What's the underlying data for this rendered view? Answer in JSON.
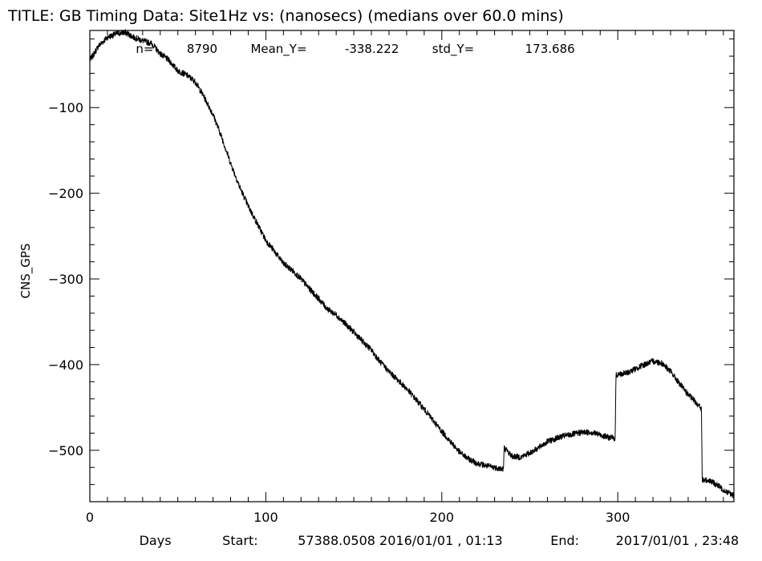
{
  "chart_data": {
    "type": "line",
    "title": "TITLE: GB Timing Data: Site1Hz vs: (nanosecs) (medians over 60.0 mins)",
    "stats": {
      "n_label": "n=",
      "n_value": "8790",
      "mean_label": "Mean_Y=",
      "mean_value": "-338.222",
      "std_label": "std_Y=",
      "std_value": "173.686"
    },
    "xlabel": "Days",
    "ylabel": "CNS_GPS",
    "xlim": [
      0,
      366
    ],
    "ylim": [
      -560,
      -10
    ],
    "x_ticks": [
      0,
      100,
      200,
      300
    ],
    "y_ticks": [
      -100,
      -200,
      -300,
      -400,
      -500
    ],
    "footer": {
      "start_label": "Start:",
      "start_value": "57388.0508 2016/01/01 , 01:13",
      "end_label": "End:",
      "end_value": "2017/01/01 , 23:48"
    },
    "grid": false,
    "series": [
      {
        "x": [
          0,
          5,
          10,
          15,
          20,
          25,
          30,
          35,
          40,
          45,
          50,
          55,
          60,
          65,
          70,
          75,
          80,
          85,
          90,
          95,
          100,
          105,
          110,
          115,
          120,
          125,
          130,
          135,
          140,
          145,
          150,
          155,
          160,
          165,
          170,
          175,
          180,
          185,
          190,
          195,
          200,
          205,
          210,
          215,
          220,
          225,
          230,
          235,
          235.5,
          240,
          245,
          250,
          255,
          260,
          265,
          270,
          275,
          280,
          285,
          290,
          295,
          298.5,
          299,
          305,
          310,
          315,
          320,
          325,
          330,
          335,
          340,
          345,
          347.5,
          348,
          352,
          356,
          360,
          366
        ],
        "y": [
          -45,
          -28,
          -18,
          -14,
          -12,
          -18,
          -22,
          -25,
          -37,
          -45,
          -57,
          -62,
          -70,
          -88,
          -108,
          -135,
          -165,
          -192,
          -215,
          -235,
          -255,
          -268,
          -282,
          -290,
          -300,
          -312,
          -323,
          -335,
          -342,
          -352,
          -362,
          -373,
          -383,
          -397,
          -408,
          -418,
          -428,
          -440,
          -452,
          -465,
          -478,
          -490,
          -502,
          -510,
          -515,
          -518,
          -520,
          -522,
          -497,
          -507,
          -508,
          -503,
          -497,
          -490,
          -486,
          -483,
          -481,
          -479,
          -479,
          -482,
          -485,
          -486,
          -412,
          -410,
          -405,
          -400,
          -396,
          -398,
          -408,
          -422,
          -435,
          -445,
          -452,
          -535,
          -535,
          -540,
          -546,
          -553
        ]
      }
    ]
  }
}
